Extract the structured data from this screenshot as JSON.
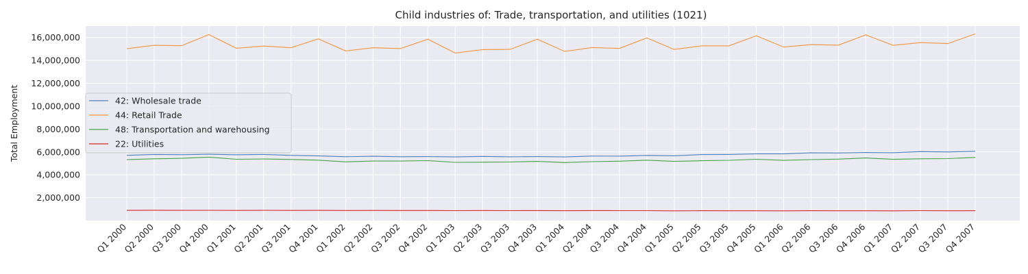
{
  "chart_data": {
    "type": "line",
    "title": "Child industries of: Trade, transportation, and utilities (1021)",
    "xlabel": "",
    "ylabel": "Total Employment",
    "ylim": [
      0,
      17000000
    ],
    "yticks": [
      2000000,
      4000000,
      6000000,
      8000000,
      10000000,
      12000000,
      14000000,
      16000000
    ],
    "ytick_labels": [
      "2,000,000",
      "4,000,000",
      "6,000,000",
      "8,000,000",
      "10,000,000",
      "12,000,000",
      "14,000,000",
      "16,000,000"
    ],
    "grid": true,
    "legend_position": "center-left",
    "categories": [
      "Q1 2000",
      "Q2 2000",
      "Q3 2000",
      "Q4 2000",
      "Q1 2001",
      "Q2 2001",
      "Q3 2001",
      "Q4 2001",
      "Q1 2002",
      "Q2 2002",
      "Q3 2002",
      "Q4 2002",
      "Q1 2003",
      "Q2 2003",
      "Q3 2003",
      "Q4 2003",
      "Q1 2004",
      "Q2 2004",
      "Q3 2004",
      "Q4 2004",
      "Q1 2005",
      "Q2 2005",
      "Q3 2005",
      "Q4 2005",
      "Q1 2006",
      "Q2 2006",
      "Q3 2006",
      "Q4 2006",
      "Q1 2007",
      "Q2 2007",
      "Q3 2007",
      "Q4 2007"
    ],
    "series": [
      {
        "name": "42: Wholesale trade",
        "color": "#4c7fbf",
        "values": [
          5700000,
          5780000,
          5760000,
          5800000,
          5750000,
          5780000,
          5700000,
          5650000,
          5580000,
          5620000,
          5580000,
          5590000,
          5560000,
          5610000,
          5570000,
          5590000,
          5560000,
          5640000,
          5630000,
          5690000,
          5660000,
          5770000,
          5780000,
          5830000,
          5830000,
          5920000,
          5910000,
          5950000,
          5930000,
          6030000,
          6000000,
          6050000
        ]
      },
      {
        "name": "44: Retail Trade",
        "color": "#f7943d",
        "values": [
          15020000,
          15320000,
          15280000,
          16250000,
          15060000,
          15250000,
          15100000,
          15880000,
          14820000,
          15100000,
          15030000,
          15850000,
          14640000,
          14940000,
          14960000,
          15850000,
          14780000,
          15120000,
          15040000,
          15960000,
          14950000,
          15270000,
          15270000,
          16150000,
          15160000,
          15380000,
          15330000,
          16230000,
          15310000,
          15550000,
          15470000,
          16310000
        ]
      },
      {
        "name": "48: Transportation and warehousing",
        "color": "#43a346",
        "values": [
          5320000,
          5400000,
          5440000,
          5540000,
          5360000,
          5380000,
          5340000,
          5280000,
          5130000,
          5200000,
          5200000,
          5240000,
          5090000,
          5100000,
          5120000,
          5170000,
          5070000,
          5150000,
          5190000,
          5280000,
          5170000,
          5230000,
          5270000,
          5360000,
          5260000,
          5330000,
          5370000,
          5470000,
          5350000,
          5400000,
          5420000,
          5520000
        ]
      },
      {
        "name": "22: Utilities",
        "color": "#d62728",
        "values": [
          890000,
          905000,
          890000,
          895000,
          885000,
          895000,
          885000,
          890000,
          880000,
          885000,
          878000,
          880000,
          865000,
          878000,
          870000,
          872000,
          862000,
          872000,
          865000,
          868000,
          852000,
          860000,
          858000,
          858000,
          852000,
          862000,
          855000,
          858000,
          852000,
          865000,
          858000,
          862000
        ]
      }
    ]
  }
}
